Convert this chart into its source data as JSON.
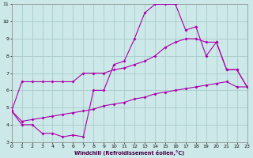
{
  "xlabel": "Windchill (Refroidissement éolien,°C)",
  "bg_color": "#cce8e8",
  "grid_color": "#aacccc",
  "line_color": "#aa00aa",
  "xmin": 0,
  "xmax": 23,
  "ymin": 3,
  "ymax": 11,
  "line1_x": [
    0,
    1,
    2,
    3,
    4,
    5,
    6,
    7,
    8,
    9,
    10,
    11,
    12,
    13,
    14,
    15,
    16,
    17,
    18,
    19,
    20,
    21,
    22,
    23
  ],
  "line1_y": [
    4.8,
    6.5,
    6.5,
    6.5,
    6.5,
    6.5,
    6.5,
    7.0,
    7.0,
    7.0,
    7.2,
    7.3,
    7.5,
    7.7,
    8.0,
    8.5,
    8.8,
    9.0,
    9.0,
    8.8,
    8.8,
    7.2,
    7.2,
    6.2
  ],
  "line2_x": [
    0,
    1,
    2,
    3,
    4,
    5,
    6,
    7,
    8,
    9,
    10,
    11,
    12,
    13,
    14,
    15,
    16,
    17,
    18,
    19,
    20,
    21,
    22,
    23
  ],
  "line2_y": [
    4.8,
    4.0,
    4.0,
    3.5,
    3.5,
    3.3,
    3.4,
    3.3,
    6.0,
    6.0,
    7.5,
    7.7,
    9.0,
    10.5,
    11.0,
    11.0,
    11.0,
    9.5,
    9.7,
    8.0,
    8.8,
    7.2,
    7.2,
    6.2
  ],
  "line3_x": [
    0,
    1,
    2,
    3,
    4,
    5,
    6,
    7,
    8,
    9,
    10,
    11,
    12,
    13,
    14,
    15,
    16,
    17,
    18,
    19,
    20,
    21,
    22,
    23
  ],
  "line3_y": [
    4.8,
    4.2,
    4.3,
    4.4,
    4.5,
    4.6,
    4.7,
    4.8,
    4.9,
    5.1,
    5.2,
    5.3,
    5.5,
    5.6,
    5.8,
    5.9,
    6.0,
    6.1,
    6.2,
    6.3,
    6.4,
    6.5,
    6.2,
    6.2
  ],
  "yticks": [
    3,
    4,
    5,
    6,
    7,
    8,
    9,
    10,
    11
  ],
  "xticks": [
    0,
    1,
    2,
    3,
    4,
    5,
    6,
    7,
    8,
    9,
    10,
    11,
    12,
    13,
    14,
    15,
    16,
    17,
    18,
    19,
    20,
    21,
    22,
    23
  ]
}
